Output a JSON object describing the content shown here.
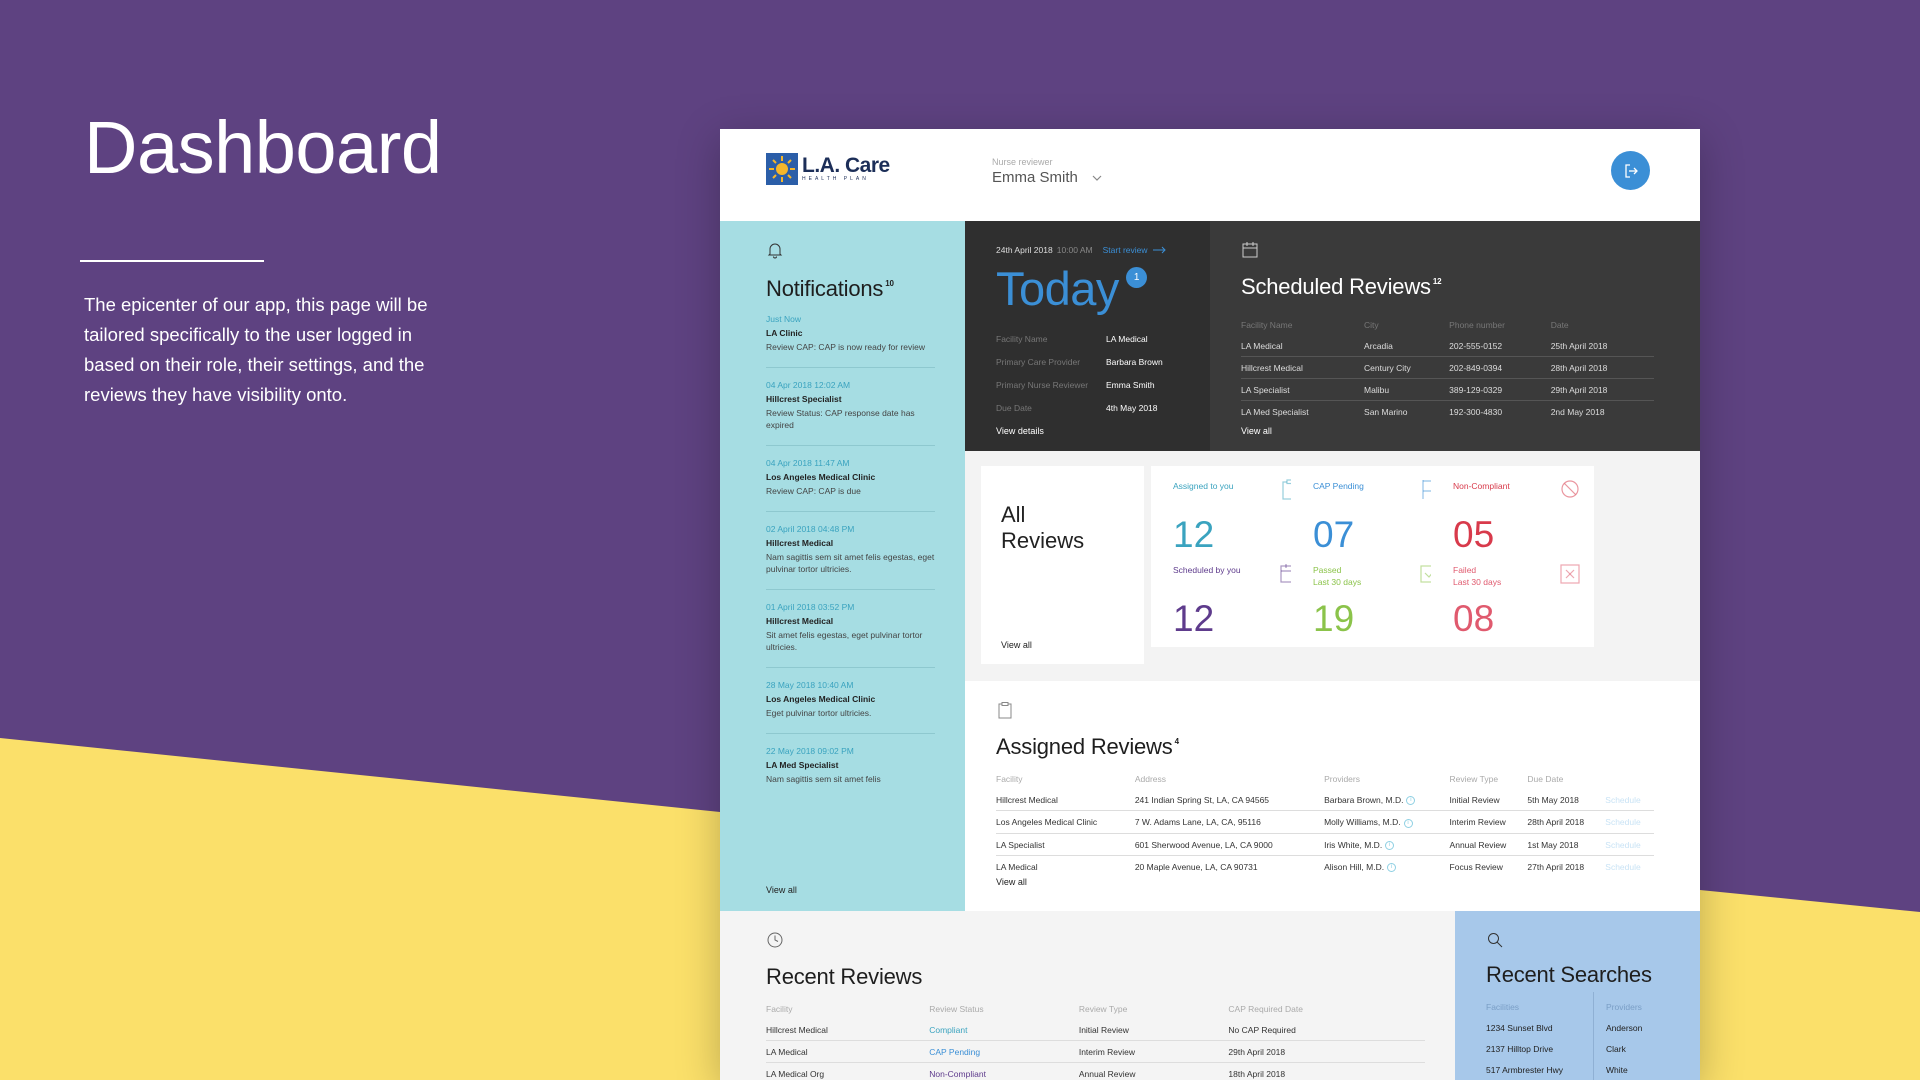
{
  "hero": {
    "title": "Dashboard",
    "text": "The epicenter of our app, this page will be tailored specifically to the user logged in based on their role, their settings, and the reviews they have visibility onto."
  },
  "colors": {
    "background_purple": "#5e4281",
    "background_yellow": "#fbe06a",
    "accent_blue": "#3b8fd6",
    "teal_panel": "#a6dde3",
    "dark_panel": "#2f2f2f",
    "compliant_blue": "#3aa3bf",
    "pending_blue": "#3b8fd6",
    "noncompliant_purple": "#5e3b8c",
    "passed_green": "#8bc34a",
    "failed_red": "#e05a6e",
    "noncompliant_red": "#d83a4b",
    "scheduled_purple": "#5e3b8c"
  },
  "header": {
    "logo_name": "L.A. Care",
    "logo_sub": "HEALTH PLAN",
    "reviewer_role": "Nurse reviewer",
    "reviewer_name": "Emma Smith",
    "logout_icon": "logout-icon"
  },
  "notifications": {
    "title": "Notifications",
    "count": "10",
    "view_all": "View all",
    "items": [
      {
        "time": "Just Now",
        "facility": "LA Clinic",
        "text": "Review CAP: CAP is now ready for review"
      },
      {
        "time": "04 Apr 2018    12:02 AM",
        "facility": "Hillcrest Specialist",
        "text": "Review Status: CAP response date has expired"
      },
      {
        "time": "04 Apr 2018    11:47 AM",
        "facility": "Los Angeles Medical Clinic",
        "text": "Review CAP: CAP is due"
      },
      {
        "time": "02 April 2018    04:48 PM",
        "facility": "Hillcrest Medical",
        "text": "Nam sagittis sem sit amet felis egestas, eget pulvinar tortor ultricies."
      },
      {
        "time": "01 April 2018    03:52 PM",
        "facility": "Hillcrest Medical",
        "text": "Sit amet felis egestas, eget pulvinar tortor ultricies."
      },
      {
        "time": "28 May 2018    10:40 AM",
        "facility": "Los Angeles Medical Clinic",
        "text": "Eget pulvinar tortor ultricies."
      },
      {
        "time": "22 May 2018    09:02 PM",
        "facility": "LA Med Specialist",
        "text": "Nam sagittis sem sit amet felis"
      }
    ]
  },
  "today": {
    "date": "24th April 2018",
    "time": "10:00 AM",
    "start_label": "Start review",
    "title": "Today",
    "badge": "1",
    "fields": [
      {
        "key": "Facility Name",
        "value": "LA Medical"
      },
      {
        "key": "Primary Care Provider",
        "value": "Barbara Brown"
      },
      {
        "key": "Primary Nurse Reviewer",
        "value": "Emma Smith"
      },
      {
        "key": "Due Date",
        "value": "4th May 2018"
      }
    ],
    "view_details": "View details"
  },
  "scheduled": {
    "title": "Scheduled Reviews",
    "count": "12",
    "headers": [
      "Facility Name",
      "City",
      "Phone number",
      "Date"
    ],
    "rows": [
      [
        "LA Medical",
        "Arcadia",
        "202-555-0152",
        "25th April 2018"
      ],
      [
        "Hillcrest Medical",
        "Century City",
        "202-849-0394",
        "28th April 2018"
      ],
      [
        "LA Specialist",
        "Malibu",
        "389-129-0329",
        "29th April 2018"
      ],
      [
        "LA Med Specialist",
        "San Marino",
        "192-300-4830",
        "2nd May 2018"
      ]
    ],
    "view_all": "View all"
  },
  "all_reviews": {
    "title_line1": "All",
    "title_line2": "Reviews",
    "view_all": "View all",
    "stats": [
      {
        "label": "Assigned to you",
        "sublabel": "",
        "value": "12",
        "icon": "clipboard-icon"
      },
      {
        "label": "CAP Pending",
        "sublabel": "",
        "value": "07",
        "icon": "flag-icon"
      },
      {
        "label": "Non-Compliant",
        "sublabel": "",
        "value": "05",
        "icon": "prohibited-icon"
      },
      {
        "label": "Scheduled by you",
        "sublabel": "",
        "value": "12",
        "icon": "calendar-icon"
      },
      {
        "label": "Passed",
        "sublabel": "Last 30 days",
        "value": "19",
        "icon": "checkbox-icon"
      },
      {
        "label": "Failed",
        "sublabel": "Last 30 days",
        "value": "08",
        "icon": "x-box-icon"
      }
    ]
  },
  "assigned": {
    "title": "Assigned Reviews",
    "count": "4",
    "headers": [
      "Facility",
      "Address",
      "Providers",
      "Review Type",
      "Due Date",
      ""
    ],
    "rows": [
      [
        "Hillcrest Medical",
        "241 Indian Spring St, LA, CA 94565",
        "Barbara Brown, M.D.",
        "Initial Review",
        "5th May 2018",
        "Schedule"
      ],
      [
        "Los Angeles Medical Clinic",
        "7 W. Adams Lane, LA, CA, 95116",
        "Molly Williams, M.D.",
        "Interim Review",
        "28th April 2018",
        "Schedule"
      ],
      [
        "LA Specialist",
        "601 Sherwood Avenue, LA, CA 9000",
        "Iris White, M.D.",
        "Annual Review",
        "1st May 2018",
        "Schedule"
      ],
      [
        "LA Medical",
        "20 Maple Avenue, LA, CA 90731",
        "Alison Hill, M.D.",
        "Focus Review",
        "27th April 2018",
        "Schedule"
      ]
    ],
    "view_all": "View all"
  },
  "recent_reviews": {
    "title": "Recent Reviews",
    "headers": [
      "Facility",
      "Review Status",
      "Review Type",
      "CAP Required Date"
    ],
    "rows": [
      [
        "Hillcrest Medical",
        "Compliant",
        "Initial Review",
        "No CAP Required"
      ],
      [
        "LA Medical",
        "CAP Pending",
        "Interim Review",
        "29th April 2018"
      ],
      [
        "LA Medical Org",
        "Non-Compliant",
        "Annual Review",
        "18th April 2018"
      ]
    ]
  },
  "recent_searches": {
    "title": "Recent Searches",
    "facilities_header": "Facilities",
    "providers_header": "Providers",
    "facilities": [
      "1234 Sunset Blvd",
      "2137 Hilltop Drive",
      "517 Armbrester Hwy"
    ],
    "providers": [
      "Anderson",
      "Clark",
      "White"
    ]
  }
}
